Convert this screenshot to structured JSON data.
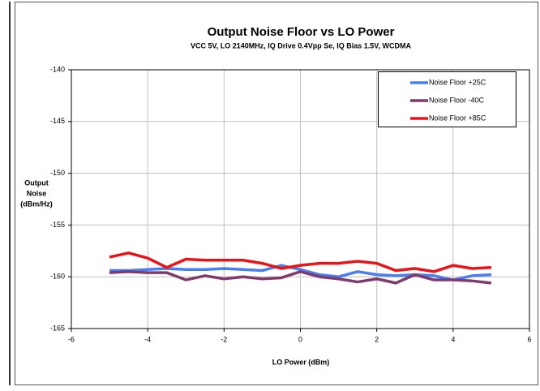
{
  "chart_data": {
    "type": "line",
    "title": "Output Noise Floor vs LO Power",
    "subtitle": "VCC 5V, LO 2140MHz, IQ Drive 0.4Vpp Se, IQ Bias 1.5V, WCDMA",
    "x_label": "LO Power (dBm)",
    "y_label": [
      "Output",
      "Noise",
      "(dBm/Hz)"
    ],
    "x": [
      -5,
      -4.5,
      -4,
      -3.5,
      -3,
      -2.5,
      -2,
      -1.5,
      -1,
      -0.5,
      0,
      0.5,
      1,
      1.5,
      2,
      2.5,
      3,
      3.5,
      4,
      4.5,
      5
    ],
    "series": [
      {
        "name": "Noise Floor +25C",
        "color": "#4a7ef0",
        "values": [
          -159.4,
          -159.4,
          -159.3,
          -159.2,
          -159.3,
          -159.3,
          -159.2,
          -159.3,
          -159.4,
          -158.9,
          -159.3,
          -159.8,
          -160.0,
          -159.5,
          -159.8,
          -159.9,
          -159.8,
          -159.9,
          -160.3,
          -159.9,
          -159.8
        ]
      },
      {
        "name": "Noise Floor -40C",
        "color": "#7f3b6e",
        "values": [
          -159.6,
          -159.5,
          -159.6,
          -159.6,
          -160.3,
          -159.9,
          -160.2,
          -160.0,
          -160.2,
          -160.1,
          -159.5,
          -160.0,
          -160.2,
          -160.5,
          -160.2,
          -160.6,
          -159.8,
          -160.3,
          -160.3,
          -160.4,
          -160.6
        ]
      },
      {
        "name": "Noise Floor +85C",
        "color": "#e8141a",
        "values": [
          -158.1,
          -157.7,
          -158.2,
          -159.1,
          -158.3,
          -158.4,
          -158.4,
          -158.4,
          -158.7,
          -159.2,
          -158.9,
          -158.7,
          -158.7,
          -158.5,
          -158.7,
          -159.4,
          -159.2,
          -159.5,
          -158.9,
          -159.2,
          -159.1
        ]
      }
    ],
    "xlim": [
      -6,
      6
    ],
    "xticks": [
      -6,
      -4,
      -2,
      0,
      2,
      4,
      6
    ],
    "ylim": [
      -165,
      -140
    ],
    "yticks": [
      -140,
      -145,
      -150,
      -155,
      -160,
      -165
    ],
    "grid": true,
    "legend": "top-right"
  }
}
